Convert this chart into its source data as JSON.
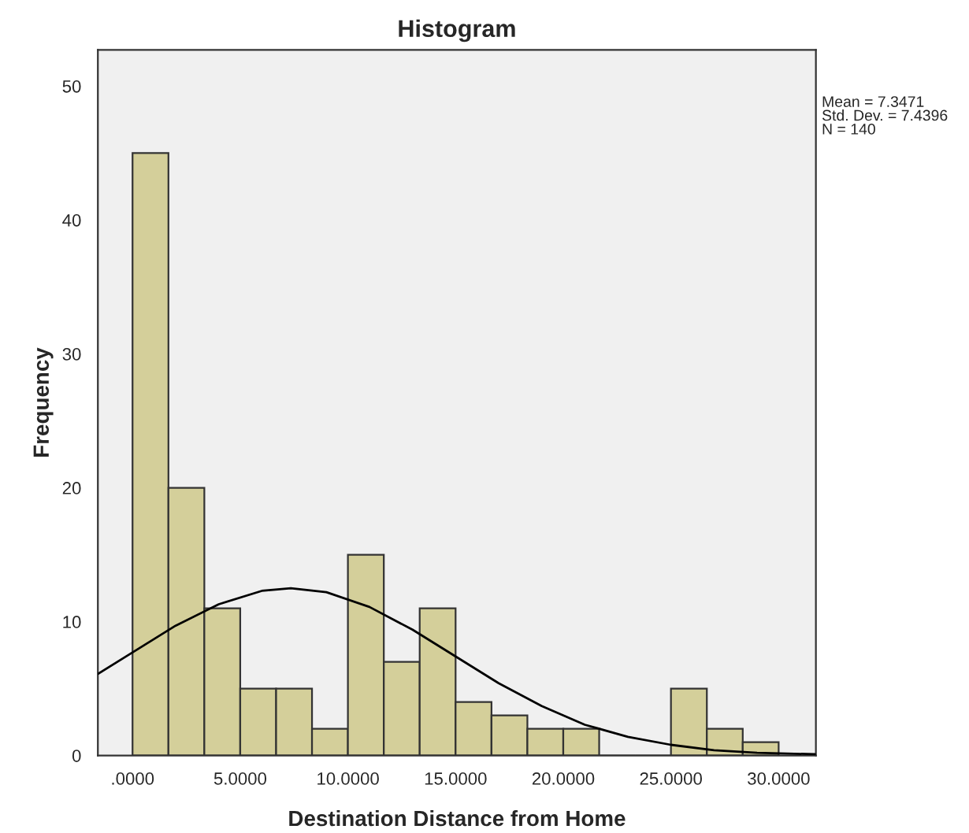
{
  "chart_data": {
    "type": "histogram",
    "title": "Histogram",
    "xlabel": "Destination Distance from Home",
    "ylabel": "Frequency",
    "annotations": [
      "Mean = 7.3471\nStd. Dev. = 7.4396\nN = 140"
    ],
    "bins": [
      0,
      1.6667,
      3.3333,
      5,
      6.6667,
      8.3333,
      10,
      11.6667,
      13.3333,
      15,
      16.6667,
      18.3333,
      20,
      21.6667,
      23.3333,
      25,
      26.6667,
      28.3333,
      30
    ],
    "series": [
      {
        "color": "#d4cf9a",
        "values": [
          45,
          20,
          11,
          5,
          5,
          2,
          15,
          7,
          11,
          4,
          3,
          2,
          2,
          0,
          0,
          5,
          2,
          1
        ]
      },
      {
        "type": "line",
        "color": "#000000",
        "x": [
          -1.6,
          0,
          2,
          4,
          6,
          7.35,
          9,
          11,
          13,
          15,
          17,
          19,
          21,
          23,
          25,
          27,
          29,
          31.7
        ],
        "values": [
          6.1,
          7.7,
          9.7,
          11.3,
          12.3,
          12.5,
          12.2,
          11.1,
          9.4,
          7.4,
          5.4,
          3.7,
          2.3,
          1.4,
          0.8,
          0.4,
          0.2,
          0.1
        ]
      }
    ],
    "xlim": [
      -1.61,
      31.73
    ],
    "ylim": [
      0,
      52.7
    ],
    "xticks": [
      {
        "value": 0,
        "label": ".0000"
      },
      {
        "value": 5,
        "label": "5.0000"
      },
      {
        "value": 10,
        "label": "10.0000"
      },
      {
        "value": 15,
        "label": "15.0000"
      },
      {
        "value": 20,
        "label": "20.0000"
      },
      {
        "value": 25,
        "label": "25.0000"
      },
      {
        "value": 30,
        "label": "30.0000"
      }
    ],
    "yticks": [
      0,
      10,
      20,
      30,
      40,
      50
    ],
    "grid": false,
    "legend": false
  }
}
